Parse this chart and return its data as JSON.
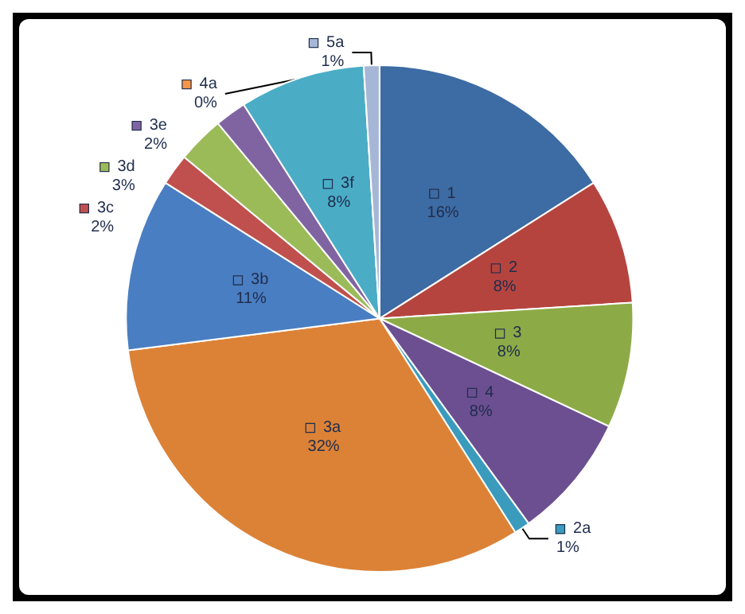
{
  "chart_data": {
    "type": "pie",
    "categories": [
      "1",
      "2",
      "3",
      "4",
      "2a",
      "3a",
      "3b",
      "3c",
      "3d",
      "3e",
      "3f",
      "4a",
      "5a"
    ],
    "values": [
      16,
      8,
      8,
      8,
      1,
      32,
      11,
      2,
      3,
      2,
      8,
      0,
      1
    ],
    "value_labels": [
      "16%",
      "8%",
      "8%",
      "8%",
      "1%",
      "32%",
      "11%",
      "2%",
      "3%",
      "2%",
      "8%",
      "0%",
      "1%"
    ],
    "colors": [
      "#3d6ba3",
      "#b5443f",
      "#8cab47",
      "#6b4f91",
      "#3a9bbd",
      "#dc8237",
      "#4a7ec2",
      "#c0504d",
      "#9bbb59",
      "#8064a2",
      "#4bacc6",
      "#f79646",
      "#a5b6d6"
    ],
    "legend": "center"
  }
}
